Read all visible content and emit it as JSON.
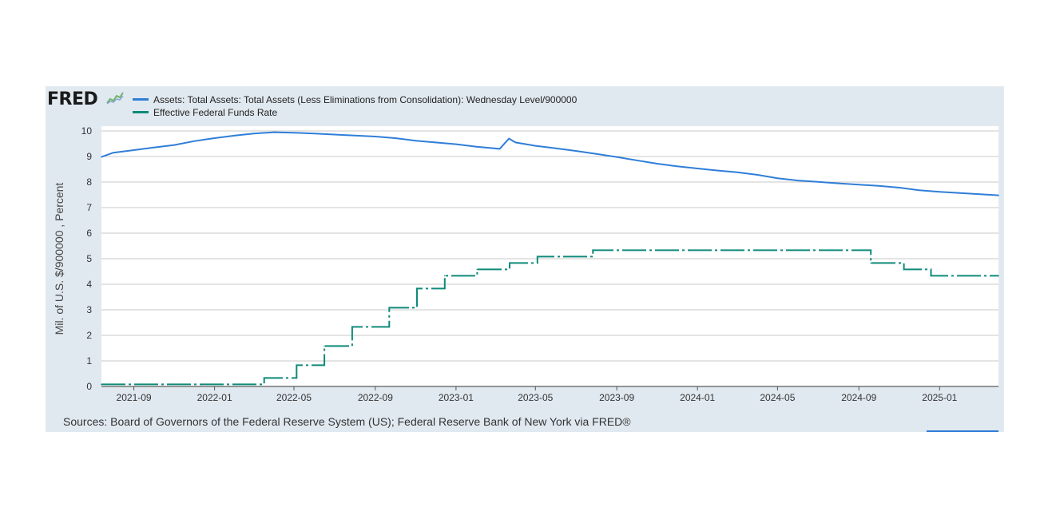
{
  "logo": {
    "text": "FRED"
  },
  "sources": "Sources: Board of Governors of the Federal Reserve System (US); Federal Reserve Bank of New York via FRED®",
  "colors": {
    "assets": "#2f7ed8",
    "effr": "#0f8a79",
    "panel": "#e1e9f0",
    "grid": "#c8c8c8"
  },
  "chart_data": {
    "type": "line",
    "ylabel": "Mil. of U.S. $/900000 , Percent",
    "xlabel": "",
    "x_range": [
      "2021-07-14",
      "2025-03-31"
    ],
    "ylim": [
      0,
      10
    ],
    "yticks": [
      "0",
      "1",
      "2",
      "3",
      "4",
      "5",
      "6",
      "7",
      "8",
      "9",
      "10"
    ],
    "xticks": [
      {
        "label": "2021-09",
        "date": "2021-09-01"
      },
      {
        "label": "2022-01",
        "date": "2022-01-01"
      },
      {
        "label": "2022-05",
        "date": "2022-05-01"
      },
      {
        "label": "2022-09",
        "date": "2022-09-01"
      },
      {
        "label": "2023-01",
        "date": "2023-01-01"
      },
      {
        "label": "2023-05",
        "date": "2023-05-01"
      },
      {
        "label": "2023-09",
        "date": "2023-09-01"
      },
      {
        "label": "2024-01",
        "date": "2024-01-01"
      },
      {
        "label": "2024-05",
        "date": "2024-05-01"
      },
      {
        "label": "2024-09",
        "date": "2024-09-01"
      },
      {
        "label": "2025-01",
        "date": "2025-01-01"
      }
    ],
    "grid": true,
    "legend_position": "top-left",
    "series": [
      {
        "name": "Assets: Total Assets: Total Assets (Less Eliminations from Consolidation): Wednesday Level/900000",
        "style": "solid",
        "x": [
          "2021-07-14",
          "2021-08-01",
          "2021-09-01",
          "2021-10-01",
          "2021-11-01",
          "2021-12-01",
          "2022-01-01",
          "2022-02-01",
          "2022-03-01",
          "2022-04-01",
          "2022-05-01",
          "2022-06-01",
          "2022-07-01",
          "2022-08-01",
          "2022-09-01",
          "2022-10-01",
          "2022-11-01",
          "2022-12-01",
          "2023-01-01",
          "2023-02-01",
          "2023-03-08",
          "2023-03-22",
          "2023-04-01",
          "2023-05-01",
          "2023-06-01",
          "2023-07-01",
          "2023-08-01",
          "2023-09-01",
          "2023-10-01",
          "2023-11-01",
          "2023-12-01",
          "2024-01-01",
          "2024-02-01",
          "2024-03-01",
          "2024-04-01",
          "2024-05-01",
          "2024-06-01",
          "2024-07-01",
          "2024-08-01",
          "2024-09-01",
          "2024-10-01",
          "2024-11-01",
          "2024-12-01",
          "2025-01-01",
          "2025-02-01",
          "2025-03-31"
        ],
        "y": [
          8.98,
          9.15,
          9.25,
          9.35,
          9.45,
          9.6,
          9.72,
          9.82,
          9.9,
          9.95,
          9.93,
          9.9,
          9.86,
          9.82,
          9.78,
          9.72,
          9.62,
          9.55,
          9.48,
          9.38,
          9.3,
          9.7,
          9.55,
          9.42,
          9.32,
          9.22,
          9.1,
          8.98,
          8.85,
          8.72,
          8.62,
          8.53,
          8.45,
          8.38,
          8.28,
          8.15,
          8.06,
          8.01,
          7.95,
          7.9,
          7.85,
          7.78,
          7.68,
          7.62,
          7.57,
          7.48
        ]
      },
      {
        "name": "Effective Federal Funds Rate",
        "style": "dash-dot",
        "x": [
          "2021-07-14",
          "2022-03-17",
          "2022-05-05",
          "2022-06-16",
          "2022-07-28",
          "2022-09-22",
          "2022-11-03",
          "2022-12-15",
          "2023-02-02",
          "2023-03-23",
          "2023-05-04",
          "2023-07-27",
          "2024-09-19",
          "2024-11-08",
          "2024-12-19",
          "2025-03-31"
        ],
        "y": [
          0.08,
          0.33,
          0.83,
          1.58,
          2.33,
          3.08,
          3.83,
          4.33,
          4.58,
          4.83,
          5.08,
          5.33,
          4.83,
          4.58,
          4.33,
          4.33
        ]
      }
    ]
  }
}
